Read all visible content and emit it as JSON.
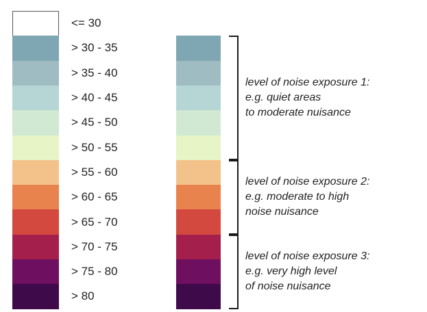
{
  "legend": {
    "classes": [
      {
        "label": "<= 30",
        "color": "#ffffff"
      },
      {
        "label": "> 30 - 35",
        "color": "#7fa6b3"
      },
      {
        "label": "> 35 - 40",
        "color": "#9fbcc3"
      },
      {
        "label": "> 40 - 45",
        "color": "#b5d6d4"
      },
      {
        "label": "> 45 - 50",
        "color": "#d1e8d2"
      },
      {
        "label": "> 50 - 55",
        "color": "#e6f4c6"
      },
      {
        "label": "> 55 - 60",
        "color": "#f3c28b"
      },
      {
        "label": "> 60 - 65",
        "color": "#e9834d"
      },
      {
        "label": "> 65 - 70",
        "color": "#d3493f"
      },
      {
        "label": "> 70 - 75",
        "color": "#a51f4d"
      },
      {
        "label": "> 75 - 80",
        "color": "#6e0f5f"
      },
      {
        "label": "> 80",
        "color": "#3f0a4a"
      }
    ]
  },
  "groups": [
    {
      "name": "level of noise exposure 1",
      "lines": [
        "level of noise exposure 1:",
        "e.g. quiet areas",
        "to moderate nuisance"
      ],
      "from": 1,
      "to": 5
    },
    {
      "name": "level of noise exposure 2",
      "lines": [
        "level of noise exposure 2:",
        "e.g. moderate to high",
        "noise nuisance"
      ],
      "from": 6,
      "to": 8
    },
    {
      "name": "level of noise exposure 3",
      "lines": [
        "level of noise exposure 3:",
        "e.g. very high level",
        "of noise nuisance"
      ],
      "from": 9,
      "to": 11
    }
  ]
}
